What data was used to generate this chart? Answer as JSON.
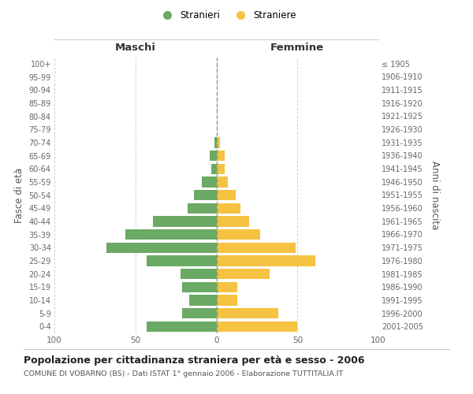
{
  "age_groups": [
    "0-4",
    "5-9",
    "10-14",
    "15-19",
    "20-24",
    "25-29",
    "30-34",
    "35-39",
    "40-44",
    "45-49",
    "50-54",
    "55-59",
    "60-64",
    "65-69",
    "70-74",
    "75-79",
    "80-84",
    "85-89",
    "90-94",
    "95-99",
    "100+"
  ],
  "birth_years": [
    "2001-2005",
    "1996-2000",
    "1991-1995",
    "1986-1990",
    "1981-1985",
    "1976-1980",
    "1971-1975",
    "1966-1970",
    "1961-1965",
    "1956-1960",
    "1951-1955",
    "1946-1950",
    "1941-1945",
    "1936-1940",
    "1931-1935",
    "1926-1930",
    "1921-1925",
    "1916-1920",
    "1911-1915",
    "1906-1910",
    "≤ 1905"
  ],
  "males": [
    43,
    21,
    17,
    21,
    22,
    43,
    68,
    56,
    39,
    18,
    14,
    9,
    3,
    4,
    1,
    0,
    0,
    0,
    0,
    0,
    0
  ],
  "females": [
    50,
    38,
    13,
    13,
    33,
    61,
    49,
    27,
    20,
    15,
    12,
    7,
    5,
    5,
    2,
    0,
    0,
    0,
    0,
    0,
    0
  ],
  "male_color": "#6aaa64",
  "female_color": "#f5c242",
  "title": "Popolazione per cittadinanza straniera per età e sesso - 2006",
  "subtitle": "COMUNE DI VOBARNO (BS) - Dati ISTAT 1° gennaio 2006 - Elaborazione TUTTITALIA.IT",
  "ylabel_left": "Fasce di età",
  "ylabel_right": "Anni di nascita",
  "label_maschi": "Maschi",
  "label_femmine": "Femmine",
  "legend_male": "Stranieri",
  "legend_female": "Straniere",
  "xlim": 100,
  "background_color": "#ffffff",
  "grid_color": "#cccccc"
}
